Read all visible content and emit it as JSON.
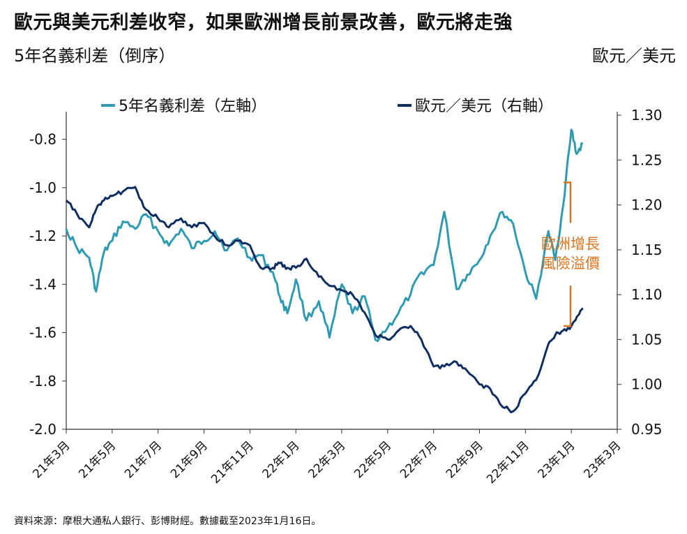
{
  "header": {
    "title": "歐元與美元利差收窄，如果歐洲增長前景改善，歐元將走強",
    "left_axis_title": "5年名義利差（倒序）",
    "right_axis_title": "歐元／美元"
  },
  "footer": {
    "source": "資料來源：摩根大通私人銀行、彭博財經。數據截至2023年1月16日。"
  },
  "colors": {
    "spread": "#2e9bb5",
    "eurusd": "#0e2e63",
    "annotation": "#d9741f",
    "axis": "#333333"
  },
  "chart_data": {
    "type": "line",
    "x_unit": "months",
    "x_range": [
      "2021-03",
      "2023-03"
    ],
    "x_tick_labels": [
      "21年3月",
      "21年5月",
      "21年7月",
      "21年9月",
      "21年11月",
      "22年1月",
      "22年3月",
      "22年5月",
      "22年7月",
      "22年9月",
      "22年11月",
      "23年1月",
      "23年3月"
    ],
    "left_axis": {
      "ylim": [
        -2.0,
        -0.7
      ],
      "inverted": true,
      "ticks": [
        -0.8,
        -1.0,
        -1.2,
        -1.4,
        -1.6,
        -1.8,
        -2.0
      ],
      "tick_labels": [
        "-0.8",
        "-1.0",
        "-1.2",
        "-1.4",
        "-1.6",
        "-1.8",
        "-2.0"
      ]
    },
    "right_axis": {
      "ylim": [
        0.95,
        1.3
      ],
      "ticks": [
        1.3,
        1.25,
        1.2,
        1.15,
        1.1,
        1.05,
        1.0,
        0.95
      ],
      "tick_labels": [
        "1.30",
        "1.25",
        "1.20",
        "1.15",
        "1.10",
        "1.05",
        "1.00",
        "0.95"
      ]
    },
    "legend": {
      "position": "top",
      "entries": [
        "5年名義利差（左軸）",
        "歐元／美元（右軸）"
      ]
    },
    "annotation": {
      "text_lines": [
        "歐洲增長",
        "風險溢價"
      ]
    },
    "grid": false,
    "series": [
      {
        "name": "5年名義利差（左軸）",
        "axis": "left",
        "x": [
          "2021-03-01",
          "2021-03-15",
          "2021-04-01",
          "2021-04-10",
          "2021-04-20",
          "2021-05-01",
          "2021-05-15",
          "2021-06-01",
          "2021-06-15",
          "2021-07-01",
          "2021-07-15",
          "2021-08-01",
          "2021-08-15",
          "2021-09-01",
          "2021-09-15",
          "2021-10-01",
          "2021-10-15",
          "2021-11-01",
          "2021-11-15",
          "2021-12-01",
          "2021-12-10",
          "2021-12-20",
          "2022-01-01",
          "2022-01-15",
          "2022-02-01",
          "2022-02-15",
          "2022-03-01",
          "2022-03-15",
          "2022-04-01",
          "2022-04-15",
          "2022-05-01",
          "2022-05-15",
          "2022-06-01",
          "2022-06-15",
          "2022-07-01",
          "2022-07-15",
          "2022-08-01",
          "2022-08-15",
          "2022-09-01",
          "2022-09-15",
          "2022-10-01",
          "2022-10-15",
          "2022-11-01",
          "2022-11-15",
          "2022-12-01",
          "2022-12-10",
          "2022-12-20",
          "2023-01-01",
          "2023-01-08",
          "2023-01-16"
        ],
        "values": [
          -1.17,
          -1.25,
          -1.29,
          -1.43,
          -1.27,
          -1.22,
          -1.14,
          -1.17,
          -1.11,
          -1.18,
          -1.24,
          -1.17,
          -1.25,
          -1.22,
          -1.18,
          -1.26,
          -1.21,
          -1.29,
          -1.28,
          -1.35,
          -1.45,
          -1.52,
          -1.38,
          -1.55,
          -1.47,
          -1.62,
          -1.4,
          -1.52,
          -1.45,
          -1.63,
          -1.58,
          -1.52,
          -1.44,
          -1.35,
          -1.32,
          -1.1,
          -1.42,
          -1.36,
          -1.3,
          -1.2,
          -1.1,
          -1.15,
          -1.35,
          -1.46,
          -1.18,
          -1.3,
          -1.08,
          -0.76,
          -0.86,
          -0.82
        ]
      },
      {
        "name": "歐元／美元（右軸）",
        "axis": "right",
        "x": [
          "2021-03-01",
          "2021-03-15",
          "2021-04-01",
          "2021-04-10",
          "2021-04-20",
          "2021-05-01",
          "2021-05-15",
          "2021-06-01",
          "2021-06-15",
          "2021-07-01",
          "2021-07-15",
          "2021-08-01",
          "2021-08-15",
          "2021-09-01",
          "2021-09-15",
          "2021-10-01",
          "2021-10-15",
          "2021-11-01",
          "2021-11-15",
          "2021-12-01",
          "2021-12-10",
          "2021-12-20",
          "2022-01-01",
          "2022-01-15",
          "2022-02-01",
          "2022-02-15",
          "2022-03-01",
          "2022-03-15",
          "2022-04-01",
          "2022-04-15",
          "2022-05-01",
          "2022-05-15",
          "2022-06-01",
          "2022-06-15",
          "2022-07-01",
          "2022-07-15",
          "2022-08-01",
          "2022-08-15",
          "2022-09-01",
          "2022-09-15",
          "2022-10-01",
          "2022-10-15",
          "2022-11-01",
          "2022-11-15",
          "2022-12-01",
          "2022-12-10",
          "2022-12-20",
          "2023-01-01",
          "2023-01-08",
          "2023-01-16"
        ],
        "values": [
          1.205,
          1.19,
          1.175,
          1.195,
          1.205,
          1.21,
          1.215,
          1.22,
          1.195,
          1.185,
          1.175,
          1.185,
          1.175,
          1.18,
          1.165,
          1.155,
          1.16,
          1.155,
          1.13,
          1.13,
          1.135,
          1.13,
          1.13,
          1.14,
          1.12,
          1.11,
          1.105,
          1.1,
          1.08,
          1.055,
          1.05,
          1.06,
          1.065,
          1.05,
          1.02,
          1.02,
          1.025,
          1.015,
          1.0,
          0.995,
          0.975,
          0.97,
          0.99,
          1.005,
          1.045,
          1.055,
          1.06,
          1.065,
          1.075,
          1.085
        ]
      }
    ]
  }
}
